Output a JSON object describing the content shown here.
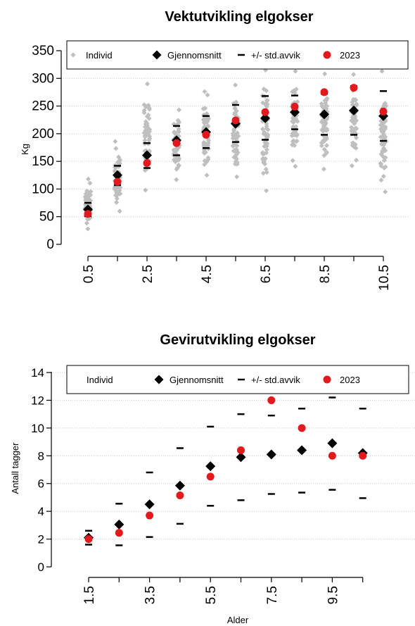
{
  "chart_data": [
    {
      "type": "scatter",
      "title": "Vektutvikling elgokser",
      "xlabel": "",
      "ylabel": "Kg",
      "ylim": [
        0,
        350
      ],
      "yticks": [
        0,
        50,
        100,
        150,
        200,
        250,
        300,
        350
      ],
      "x": [
        0.5,
        1.5,
        2.5,
        3.5,
        4.5,
        5.5,
        6.5,
        7.5,
        8.5,
        9.5,
        10.5
      ],
      "xtick_labels": [
        "0.5",
        "2.5",
        "4.5",
        "6.5",
        "8.5",
        "10.5"
      ],
      "grid": "horizontal dotted",
      "legend": {
        "position": "top",
        "items": [
          "Individ",
          "Gjennomsnitt",
          "+/- std.avvik",
          "2023"
        ]
      },
      "colors": {
        "individ": "#bfbfbf",
        "gjennomsnitt": "#000000",
        "std": "#000000",
        "y2023": "#e3191e"
      },
      "individ_ranges": [
        [
          28,
          118
        ],
        [
          60,
          186
        ],
        [
          98,
          290
        ],
        [
          117,
          243
        ],
        [
          125,
          276
        ],
        [
          122,
          288
        ],
        [
          97,
          315
        ],
        [
          141,
          313
        ],
        [
          136,
          308
        ],
        [
          142,
          307
        ],
        [
          95,
          313
        ]
      ],
      "series": [
        {
          "name": "Gjennomsnitt",
          "values": [
            63,
            125,
            161,
            188,
            203,
            218,
            228,
            239,
            235,
            242,
            232
          ]
        },
        {
          "name": "+/- std.avvik (øvre)",
          "values": [
            75,
            142,
            183,
            214,
            232,
            252,
            268,
            269,
            272,
            286,
            277
          ]
        },
        {
          "name": "+/- std.avvik (nedre)",
          "values": [
            51,
            107,
            138,
            161,
            174,
            185,
            189,
            208,
            198,
            198,
            187
          ]
        },
        {
          "name": "2023",
          "values": [
            55,
            113,
            147,
            183,
            198,
            224,
            239,
            249,
            275,
            283,
            240
          ]
        }
      ]
    },
    {
      "type": "scatter",
      "title": "Gevirutvikling elgokser",
      "xlabel": "Alder",
      "ylabel": "Antall tagger",
      "ylim": [
        0,
        14
      ],
      "yticks": [
        0,
        2,
        4,
        6,
        8,
        10,
        12,
        14
      ],
      "x": [
        1.5,
        2.5,
        3.5,
        4.5,
        5.5,
        6.5,
        7.5,
        8.5,
        9.5,
        10.5
      ],
      "xtick_labels": [
        "1.5",
        "3.5",
        "5.5",
        "7.5",
        "9.5"
      ],
      "grid": "horizontal dotted",
      "legend": {
        "position": "top",
        "items": [
          "Individ",
          "Gjennomsnitt",
          "+/- std.avvik",
          "2023"
        ]
      },
      "series": [
        {
          "name": "Gjennomsnitt",
          "values": [
            2.1,
            3.05,
            4.5,
            5.85,
            7.25,
            7.9,
            8.1,
            8.4,
            8.9,
            8.2
          ]
        },
        {
          "name": "+/- std.avvik (øvre)",
          "values": [
            2.6,
            4.55,
            6.8,
            8.55,
            10.1,
            11.0,
            10.9,
            11.4,
            12.2,
            11.4
          ]
        },
        {
          "name": "+/- std.avvik (nedre)",
          "values": [
            1.6,
            1.55,
            2.15,
            3.1,
            4.4,
            4.8,
            5.25,
            5.35,
            5.55,
            4.95
          ]
        },
        {
          "name": "2023",
          "values": [
            2.0,
            2.45,
            3.7,
            5.15,
            6.5,
            8.4,
            12.0,
            10.0,
            8.0,
            8.0
          ]
        }
      ]
    }
  ]
}
